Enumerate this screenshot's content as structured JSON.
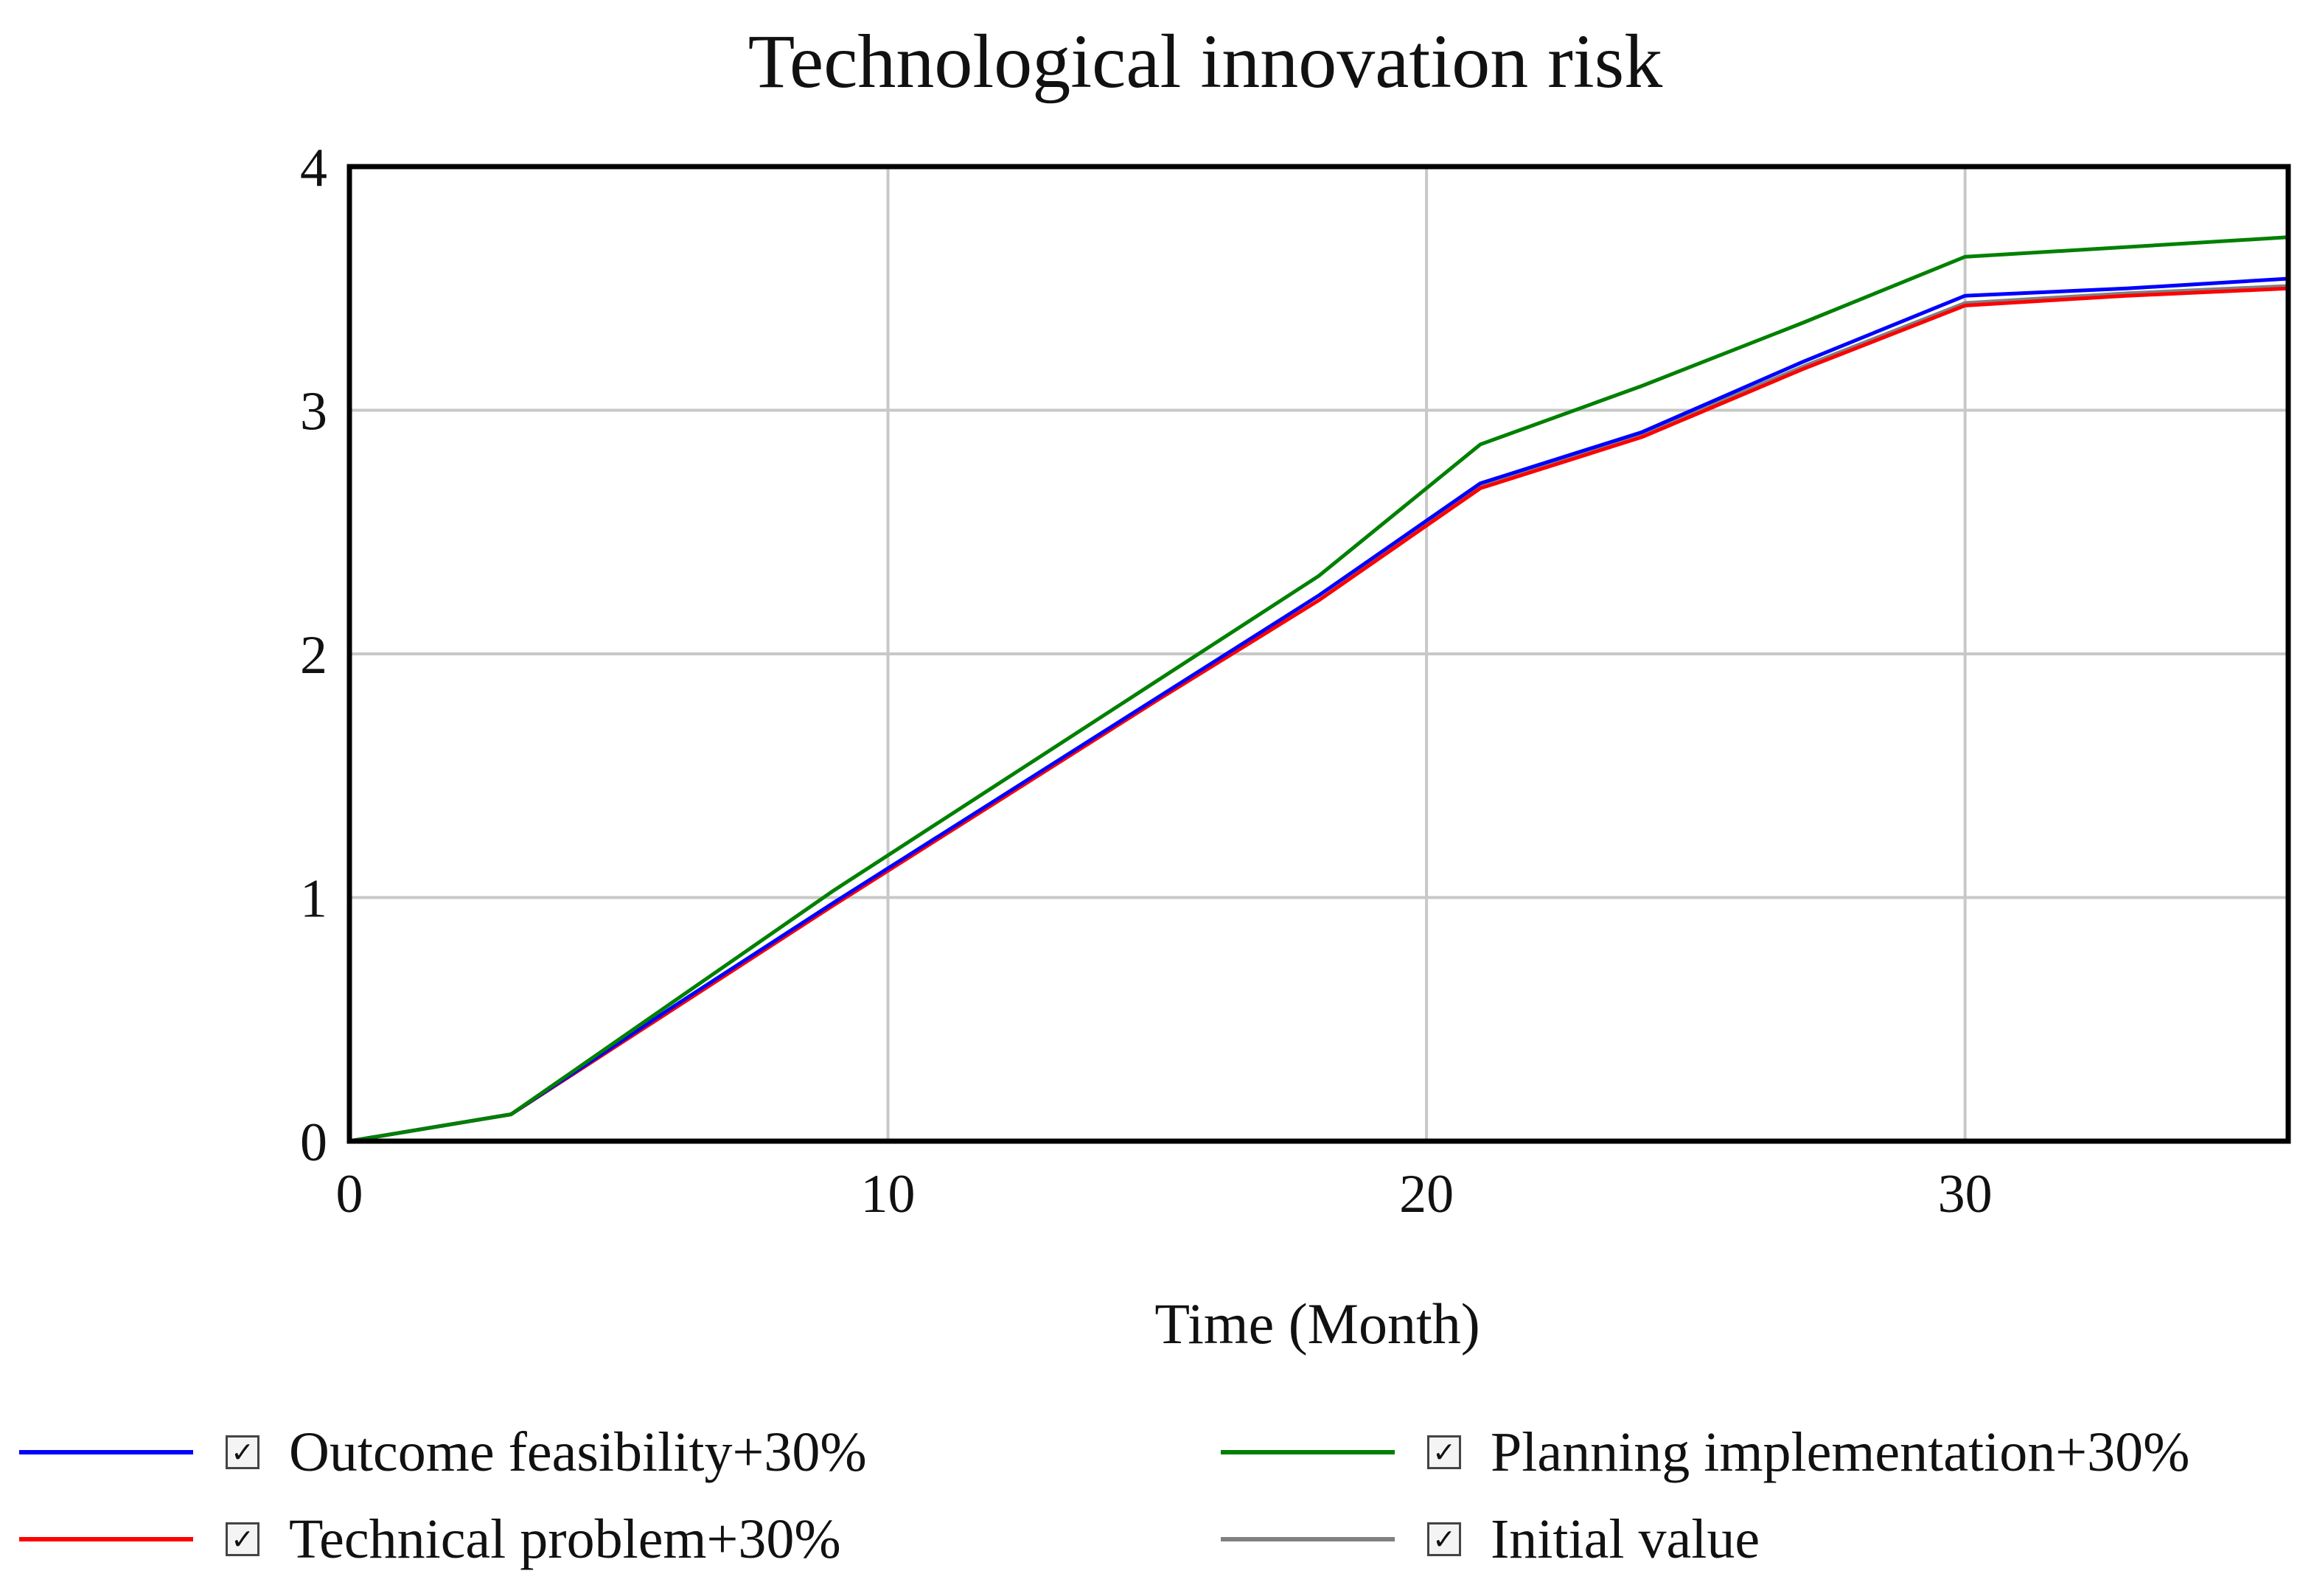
{
  "chart_data": {
    "type": "line",
    "title": "Technological innovation risk",
    "xlabel": "Time (Month)",
    "ylabel": "",
    "xlim": [
      0,
      36
    ],
    "ylim": [
      0,
      4
    ],
    "xticks": [
      0,
      10,
      20,
      30
    ],
    "yticks": [
      0,
      1,
      2,
      3,
      4
    ],
    "grid": true,
    "legend_position": "bottom",
    "x": [
      0,
      3,
      6,
      9,
      12,
      15,
      18,
      21,
      24,
      27,
      30,
      33,
      36
    ],
    "series": [
      {
        "name": "Outcome feasibility+30%",
        "color": "#0000ff",
        "checked": true,
        "check_glyph": "✓",
        "values": [
          0,
          0.11,
          0.55,
          0.98,
          1.4,
          1.82,
          2.24,
          2.7,
          2.91,
          3.2,
          3.47,
          3.5,
          3.54
        ]
      },
      {
        "name": "Technical problem+30%",
        "color": "#ff0000",
        "checked": true,
        "check_glyph": "✓",
        "values": [
          0,
          0.11,
          0.54,
          0.97,
          1.39,
          1.81,
          2.22,
          2.68,
          2.89,
          3.17,
          3.43,
          3.47,
          3.5
        ]
      },
      {
        "name": "Planning implementation+30%",
        "color": "#008000",
        "checked": true,
        "check_glyph": "✓",
        "values": [
          0,
          0.11,
          0.57,
          1.03,
          1.46,
          1.89,
          2.32,
          2.86,
          3.1,
          3.36,
          3.63,
          3.67,
          3.71
        ]
      },
      {
        "name": "Initial value",
        "color": "#808080",
        "checked": true,
        "check_glyph": "✓",
        "values": [
          0,
          0.11,
          0.54,
          0.97,
          1.39,
          1.81,
          2.22,
          2.69,
          2.9,
          3.18,
          3.44,
          3.48,
          3.51
        ]
      }
    ]
  }
}
